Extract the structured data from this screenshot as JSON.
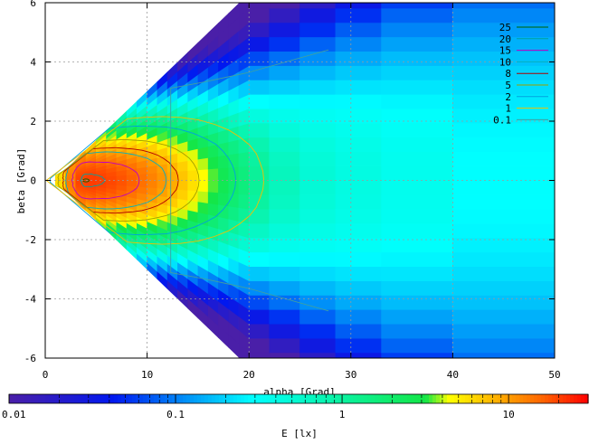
{
  "chart_data": {
    "type": "heatmap",
    "title": "",
    "xlabel": "alpha [Grad]",
    "ylabel": "beta [Grad]",
    "colorbar_label": "E [lx]",
    "xlim": [
      0,
      50
    ],
    "ylim": [
      6,
      -6
    ],
    "x_ticks": [
      "0",
      "10",
      "20",
      "30",
      "40",
      "50"
    ],
    "y_ticks": [
      "-6",
      "-4",
      "-2",
      "0",
      "2",
      "4",
      "6"
    ],
    "grid": true,
    "colorbar": {
      "scale": "log",
      "range": [
        0.01,
        30
      ],
      "tick_labels": [
        "0.01",
        "0.1",
        "1",
        "10"
      ],
      "stops": [
        "#4a1fa8",
        "#0018f0",
        "#00ffff",
        "#14e646",
        "#ffff00",
        "#ff6600",
        "#ff0000"
      ]
    },
    "contour_legend": {
      "placement": "top-right",
      "entries": [
        {
          "label": "25",
          "color": "#006400"
        },
        {
          "label": "20",
          "color": "#00a0a0"
        },
        {
          "label": "15",
          "color": "#c000c0"
        },
        {
          "label": "10",
          "color": "#00b0c0"
        },
        {
          "label": "8",
          "color": "#b00000"
        },
        {
          "label": "5",
          "color": "#a0a000"
        },
        {
          "label": "2",
          "color": "#00a0e0"
        },
        {
          "label": "1",
          "color": "#f0c000"
        },
        {
          "label": "0.1",
          "color": "#40a0a0"
        }
      ]
    },
    "illuminance_field": {
      "x_segments": [
        [
          1,
          2
        ],
        [
          2,
          3
        ],
        [
          3,
          4
        ],
        [
          4,
          5
        ],
        [
          5,
          6
        ],
        [
          6,
          7
        ],
        [
          7,
          8
        ],
        [
          8,
          9
        ],
        [
          9,
          10
        ],
        [
          10,
          11
        ],
        [
          11,
          12
        ],
        [
          12,
          13
        ],
        [
          13,
          14
        ],
        [
          14,
          15
        ],
        [
          15,
          16
        ],
        [
          16,
          17
        ],
        [
          17,
          18
        ],
        [
          18,
          19
        ],
        [
          19,
          20
        ],
        [
          20,
          22
        ],
        [
          22,
          25
        ],
        [
          25,
          28.5
        ],
        [
          28.5,
          33
        ],
        [
          33,
          40
        ],
        [
          40,
          50
        ]
      ],
      "peak_lux": 20,
      "peak_at": [
        4,
        0
      ]
    }
  }
}
